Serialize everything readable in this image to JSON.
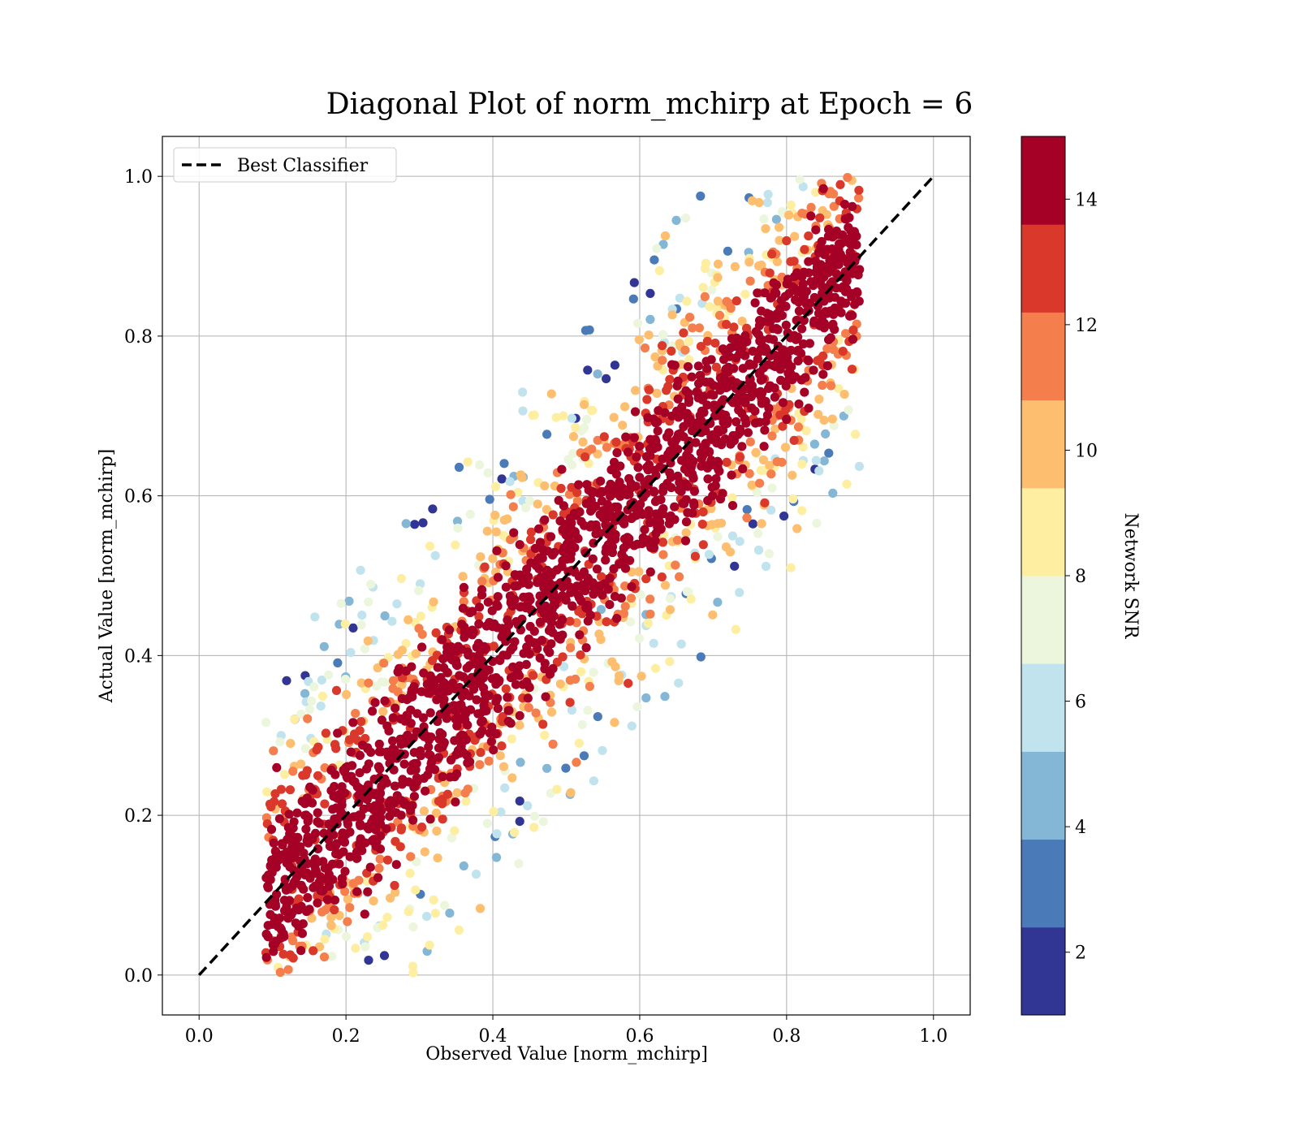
{
  "chart_data": {
    "type": "scatter",
    "title": "Diagonal Plot of norm_mchirp at Epoch = 6",
    "xlabel": "Observed Value [norm_mchirp]",
    "ylabel": "Actual Value [norm_mchirp]",
    "xlim": [
      -0.05,
      1.05
    ],
    "ylim": [
      -0.05,
      1.05
    ],
    "xticks": [
      0.0,
      0.2,
      0.4,
      0.6,
      0.8,
      1.0
    ],
    "yticks": [
      0.0,
      0.2,
      0.4,
      0.6,
      0.8,
      1.0
    ],
    "xtick_labels": [
      "0.0",
      "0.2",
      "0.4",
      "0.6",
      "0.8",
      "1.0"
    ],
    "ytick_labels": [
      "0.0",
      "0.2",
      "0.4",
      "0.6",
      "0.8",
      "1.0"
    ],
    "grid": true,
    "legend": {
      "position": "top-left",
      "entries": [
        {
          "label": "Best Classifier",
          "style": "dashed",
          "color": "#000000"
        }
      ]
    },
    "best_classifier_line": {
      "x": [
        0.0,
        1.0
      ],
      "y": [
        0.0,
        1.0
      ]
    },
    "colorbar": {
      "label": "Network SNR",
      "range": [
        1,
        15
      ],
      "ticks": [
        2,
        4,
        6,
        8,
        10,
        12,
        14
      ],
      "tick_labels": [
        "2",
        "4",
        "6",
        "8",
        "10",
        "12",
        "14"
      ],
      "colors": [
        "#313695",
        "#4a7ab7",
        "#84b6d5",
        "#c0e3ee",
        "#ecf6dd",
        "#feeea2",
        "#fdbf6f",
        "#f57e4d",
        "#da382a",
        "#a50026"
      ]
    },
    "scatter_description": {
      "point_color_by": "Network SNR",
      "band_offset_vs_diagonal": [
        -0.25,
        0.25
      ],
      "high_snr_near_diagonal": true,
      "low_snr_offdiagonal": true
    }
  }
}
